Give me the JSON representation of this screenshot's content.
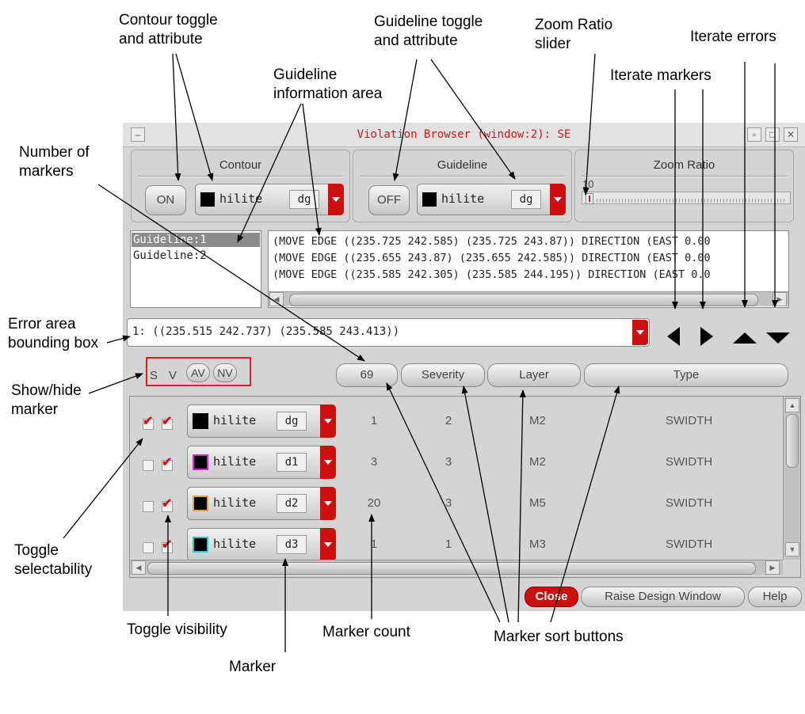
{
  "window": {
    "title": "Violation Browser (window:2): SE"
  },
  "contour": {
    "label": "Contour",
    "toggle": "ON",
    "attr_name": "hilite",
    "attr_suffix": "dg",
    "swatch_color": "#000000"
  },
  "guideline": {
    "label": "Guideline",
    "toggle": "OFF",
    "attr_name": "hilite",
    "attr_suffix": "dg",
    "swatch_color": "#000000"
  },
  "zoom": {
    "label": "Zoom Ratio",
    "value": "10"
  },
  "guideline_list": [
    "Guideline:1",
    "Guideline:2"
  ],
  "guideline_info": [
    "(MOVE EDGE ((235.725 242.585) (235.725 243.87)) DIRECTION (EAST 0.00",
    "(MOVE EDGE ((235.655 243.87) (235.655 242.585)) DIRECTION (EAST 0.00",
    "(MOVE EDGE ((235.585 242.305) (235.585 244.195)) DIRECTION (EAST 0.0"
  ],
  "error_bbox": "1: ((235.515 242.737) (235.585 243.413))",
  "show_hide": {
    "s": "S",
    "v": "V",
    "av": "AV",
    "nv": "NV"
  },
  "sort_buttons": {
    "count": "69",
    "severity": "Severity",
    "layer": "Layer",
    "type": "Type"
  },
  "markers": [
    {
      "selectable": true,
      "visible": true,
      "attr_name": "hilite",
      "attr_suffix": "dg",
      "swatch_color": "#000000",
      "border_color": "#000000",
      "count": "1",
      "severity": "2",
      "layer": "M2",
      "type": "SWIDTH"
    },
    {
      "selectable": false,
      "visible": true,
      "attr_name": "hilite",
      "attr_suffix": "d1",
      "swatch_color": "#000000",
      "border_color": "#e020e0",
      "count": "3",
      "severity": "3",
      "layer": "M2",
      "type": "SWIDTH"
    },
    {
      "selectable": false,
      "visible": true,
      "attr_name": "hilite",
      "attr_suffix": "d2",
      "swatch_color": "#000000",
      "border_color": "#d8a850",
      "count": "20",
      "severity": "3",
      "layer": "M5",
      "type": "SWIDTH"
    },
    {
      "selectable": false,
      "visible": true,
      "attr_name": "hilite",
      "attr_suffix": "d3",
      "swatch_color": "#000000",
      "border_color": "#20d0d0",
      "count": "1",
      "severity": "1",
      "layer": "M3",
      "type": "SWIDTH"
    }
  ],
  "bottom_buttons": {
    "close": "Close",
    "raise": "Raise Design Window",
    "help": "Help"
  },
  "annotations": {
    "contour_toggle": [
      "Contour toggle",
      "and attribute"
    ],
    "guideline_toggle": [
      "Guideline toggle",
      "and attribute"
    ],
    "zoom_slider": [
      "Zoom Ratio",
      "slider"
    ],
    "iterate_errors": "Iterate errors",
    "iterate_markers": "Iterate markers",
    "guideline_info_area": [
      "Guideline",
      "information area"
    ],
    "number_of_markers": [
      "Number of",
      "markers"
    ],
    "error_bbox": [
      "Error area",
      "bounding box"
    ],
    "show_hide_marker": [
      "Show/hide",
      "marker"
    ],
    "toggle_selectability": [
      "Toggle",
      "selectability"
    ],
    "toggle_visibility": "Toggle visibility",
    "marker_count": "Marker count",
    "marker_sort_buttons": "Marker sort buttons",
    "marker": "Marker"
  },
  "colors": {
    "accent_red": "#cc1010",
    "title_red": "#d01818",
    "highlight_box": "#e02020"
  }
}
